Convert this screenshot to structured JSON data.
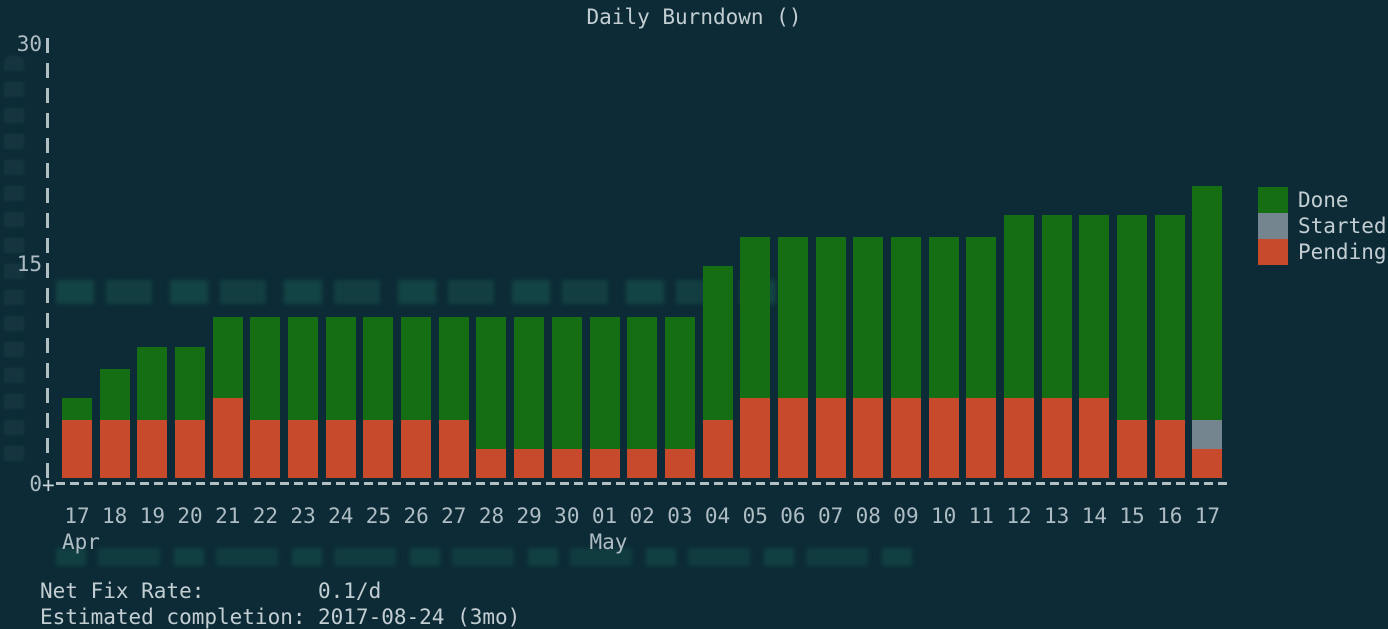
{
  "title": "Daily Burndown ()",
  "colors": {
    "background": "#0c2b36",
    "done": "#156e13",
    "started": "#75858f",
    "pending": "#c64a2b",
    "text": "#c3ced3",
    "axis": "#c9d4d8",
    "tick_text": "#aebcc3"
  },
  "axes": {
    "origin_marker": "+",
    "y_ticks": [
      {
        "value": 0,
        "label": "0"
      },
      {
        "value": 15,
        "label": "15"
      },
      {
        "value": 30,
        "label": "30"
      }
    ]
  },
  "legend": {
    "position": "right",
    "items": [
      {
        "label": "Done",
        "series": "done"
      },
      {
        "label": "Started",
        "series": "started"
      },
      {
        "label": "Pending",
        "series": "pending"
      }
    ]
  },
  "footer": {
    "rows": [
      {
        "label": "Net Fix Rate:",
        "value": "0.1/d"
      },
      {
        "label": "Estimated completion:",
        "value": "2017-08-24 (3mo)"
      }
    ]
  },
  "chart_data": {
    "type": "bar",
    "stacked": true,
    "title": "Daily Burndown ()",
    "xlabel": "",
    "ylabel": "",
    "ylim": [
      0,
      30
    ],
    "yticks": [
      0,
      15,
      30
    ],
    "grid": false,
    "legend_position": "right",
    "categories": [
      "17",
      "18",
      "19",
      "20",
      "21",
      "22",
      "23",
      "24",
      "25",
      "26",
      "27",
      "28",
      "29",
      "30",
      "01",
      "02",
      "03",
      "04",
      "05",
      "06",
      "07",
      "08",
      "09",
      "10",
      "11",
      "12",
      "13",
      "14",
      "15",
      "16",
      "17"
    ],
    "month_markers": [
      {
        "index": 0,
        "label": "Apr"
      },
      {
        "index": 14,
        "label": "May"
      }
    ],
    "series": [
      {
        "name": "Pending",
        "color": "#c64a2b",
        "values": [
          4,
          4,
          4,
          4,
          5.5,
          4,
          4,
          4,
          4,
          4,
          4,
          2,
          2,
          2,
          2,
          2,
          2,
          4,
          5.5,
          5.5,
          5.5,
          5.5,
          5.5,
          5.5,
          5.5,
          5.5,
          5.5,
          5.5,
          4,
          4,
          2
        ]
      },
      {
        "name": "Started",
        "color": "#75858f",
        "values": [
          0,
          0,
          0,
          0,
          0,
          0,
          0,
          0,
          0,
          0,
          0,
          0,
          0,
          0,
          0,
          0,
          0,
          0,
          0,
          0,
          0,
          0,
          0,
          0,
          0,
          0,
          0,
          0,
          0,
          0,
          2
        ]
      },
      {
        "name": "Done",
        "color": "#156e13",
        "values": [
          1.5,
          3.5,
          5,
          5,
          5.5,
          7,
          7,
          7,
          7,
          7,
          7,
          9,
          9,
          9,
          9,
          9,
          9,
          10.5,
          11,
          11,
          11,
          11,
          11,
          11,
          11,
          12.5,
          12.5,
          12.5,
          14,
          14,
          16
        ]
      }
    ]
  }
}
